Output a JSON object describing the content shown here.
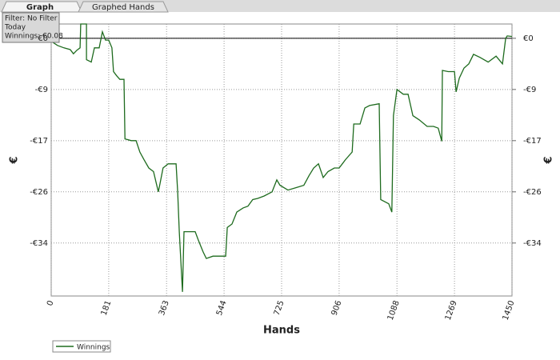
{
  "tabs": [
    "Graph",
    "Graphed Hands"
  ],
  "info": {
    "filter": "Filter: No Filter",
    "period": "Today",
    "winnings": "Winnings: €0.08"
  },
  "chart_data": {
    "type": "line",
    "xlabel": "Hands",
    "ylabel": "€",
    "y2label": "€",
    "xlim": [
      0,
      1450
    ],
    "xticks": [
      0,
      181,
      363,
      544,
      725,
      906,
      1088,
      1269,
      1450
    ],
    "ylim": [
      -43.3,
      2.4
    ],
    "yticks": [
      {
        "value": 0,
        "label": "€0"
      },
      {
        "value": -8.6,
        "label": "-€9"
      },
      {
        "value": -17.2,
        "label": "-€17"
      },
      {
        "value": -25.8,
        "label": "-€26"
      },
      {
        "value": -34.4,
        "label": "-€34"
      }
    ],
    "grid": true,
    "series": [
      {
        "name": "Winnings",
        "color": "#1e6b1e",
        "x": [
          0,
          20,
          40,
          60,
          70,
          81,
          91,
          93,
          111,
          111,
          126,
          136,
          151,
          161,
          171,
          181,
          191,
          196,
          206,
          216,
          229,
          232,
          252,
          267,
          279,
          292,
          307,
          322,
          337,
          342,
          352,
          368,
          393,
          398,
          403,
          413,
          418,
          433,
          453,
          463,
          478,
          488,
          509,
          534,
          549,
          554,
          569,
          584,
          604,
          619,
          634,
          650,
          670,
          695,
          710,
          720,
          745,
          770,
          795,
          811,
          826,
          841,
          856,
          871,
          891,
          906,
          916,
          926,
          947,
          952,
          972,
          987,
          1002,
          1032,
          1037,
          1062,
          1072,
          1077,
          1088,
          1108,
          1123,
          1138,
          1158,
          1183,
          1203,
          1218,
          1229,
          1231,
          1249,
          1269,
          1274,
          1284,
          1299,
          1314,
          1329,
          1349,
          1375,
          1400,
          1420,
          1430,
          1435,
          1450
        ],
        "values": [
          -0.5,
          -1.2,
          -1.6,
          -1.9,
          -2.6,
          -2.0,
          -1.6,
          2.4,
          2.4,
          -3.6,
          -4.0,
          -1.6,
          -1.6,
          1.1,
          -0.3,
          -0.3,
          -1.6,
          -5.6,
          -6.3,
          -6.9,
          -6.9,
          -16.9,
          -17.2,
          -17.2,
          -19.1,
          -20.4,
          -21.8,
          -22.4,
          -25.8,
          -24.5,
          -21.8,
          -21.1,
          -21.1,
          -25.8,
          -32.5,
          -42.6,
          -32.5,
          -32.5,
          -32.5,
          -33.9,
          -35.9,
          -37.0,
          -36.6,
          -36.6,
          -36.6,
          -31.8,
          -31.2,
          -29.2,
          -28.5,
          -28.2,
          -27.1,
          -26.9,
          -26.5,
          -25.8,
          -23.8,
          -24.7,
          -25.5,
          -25.1,
          -24.7,
          -23.1,
          -21.8,
          -21.1,
          -23.4,
          -22.4,
          -21.8,
          -21.8,
          -21.1,
          -20.4,
          -19.1,
          -14.4,
          -14.4,
          -11.7,
          -11.3,
          -11.0,
          -27.1,
          -27.8,
          -29.2,
          -13.0,
          -8.6,
          -9.4,
          -9.4,
          -13.0,
          -13.7,
          -14.8,
          -14.8,
          -15.1,
          -17.3,
          -5.4,
          -5.6,
          -5.6,
          -9.0,
          -6.7,
          -5.0,
          -4.3,
          -2.7,
          -3.2,
          -4.0,
          -3.0,
          -4.3,
          0,
          0.4,
          0.3
        ]
      }
    ]
  }
}
